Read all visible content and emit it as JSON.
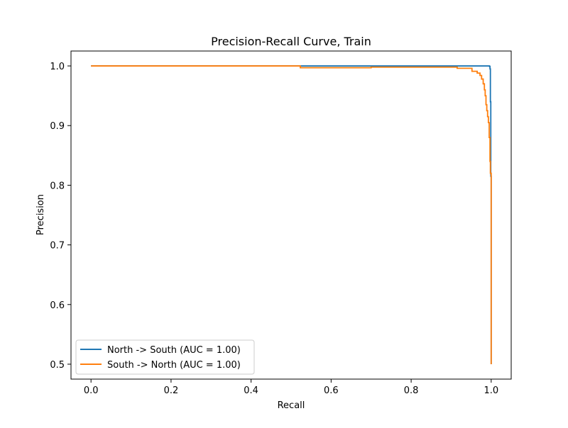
{
  "chart_data": {
    "type": "line",
    "title": "Precision-Recall Curve, Train",
    "xlabel": "Recall",
    "ylabel": "Precision",
    "xlim": [
      -0.05,
      1.05
    ],
    "ylim": [
      0.475,
      1.025
    ],
    "xticks": [
      0.0,
      0.2,
      0.4,
      0.6,
      0.8,
      1.0
    ],
    "xtick_labels": [
      "0.0",
      "0.2",
      "0.4",
      "0.6",
      "0.8",
      "1.0"
    ],
    "yticks": [
      0.5,
      0.6,
      0.7,
      0.8,
      0.9,
      1.0
    ],
    "ytick_labels": [
      "0.5",
      "0.6",
      "0.7",
      "0.8",
      "0.9",
      "1.0"
    ],
    "grid": false,
    "legend_position": "lower-left",
    "series": [
      {
        "name": "North -> South (AUC = 1.00)",
        "color": "#1f77b4",
        "step": true,
        "points": [
          [
            0.0,
            1.0
          ],
          [
            0.996,
            1.0
          ],
          [
            0.996,
            0.999
          ],
          [
            0.997,
            0.999
          ],
          [
            0.997,
            0.995
          ],
          [
            0.998,
            0.995
          ],
          [
            0.998,
            0.94
          ],
          [
            0.999,
            0.94
          ],
          [
            0.999,
            0.88
          ],
          [
            0.999,
            0.815
          ],
          [
            1.0,
            0.815
          ],
          [
            1.0,
            0.5
          ]
        ]
      },
      {
        "name": "South -> North (AUC = 1.00)",
        "color": "#ff7f0e",
        "step": true,
        "points": [
          [
            0.0,
            1.0
          ],
          [
            0.523,
            1.0
          ],
          [
            0.523,
            0.997
          ],
          [
            0.7,
            0.997
          ],
          [
            0.7,
            0.998
          ],
          [
            0.915,
            0.998
          ],
          [
            0.915,
            0.996
          ],
          [
            0.952,
            0.996
          ],
          [
            0.952,
            0.991
          ],
          [
            0.965,
            0.991
          ],
          [
            0.965,
            0.988
          ],
          [
            0.972,
            0.988
          ],
          [
            0.972,
            0.984
          ],
          [
            0.976,
            0.984
          ],
          [
            0.976,
            0.978
          ],
          [
            0.98,
            0.978
          ],
          [
            0.98,
            0.97
          ],
          [
            0.983,
            0.97
          ],
          [
            0.983,
            0.96
          ],
          [
            0.985,
            0.96
          ],
          [
            0.985,
            0.95
          ],
          [
            0.987,
            0.95
          ],
          [
            0.987,
            0.935
          ],
          [
            0.989,
            0.935
          ],
          [
            0.989,
            0.925
          ],
          [
            0.991,
            0.925
          ],
          [
            0.991,
            0.915
          ],
          [
            0.993,
            0.915
          ],
          [
            0.993,
            0.905
          ],
          [
            0.995,
            0.905
          ],
          [
            0.995,
            0.88
          ],
          [
            0.997,
            0.88
          ],
          [
            0.997,
            0.84
          ],
          [
            0.998,
            0.84
          ],
          [
            0.998,
            0.82
          ],
          [
            1.0,
            0.82
          ],
          [
            1.0,
            0.5
          ]
        ]
      }
    ]
  }
}
